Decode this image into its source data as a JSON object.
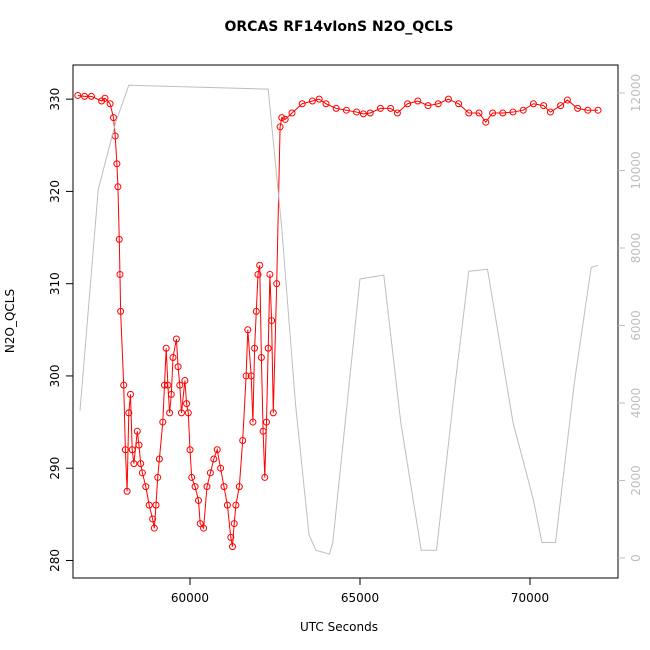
{
  "chart_data": {
    "type": "line",
    "title": "ORCAS RF14vIonS N2O_QCLS",
    "xlabel": "UTC Seconds",
    "ylabel": "N2O_QCLS",
    "xlim": [
      56559,
      72588
    ],
    "xticks": [
      60000,
      65000,
      70000
    ],
    "ylim": [
      278.1,
      333.7
    ],
    "yticks": [
      280,
      290,
      300,
      310,
      320,
      330
    ],
    "y2lim": [
      -516,
      12722
    ],
    "y2ticks": [
      0,
      2000,
      4000,
      6000,
      8000,
      10000,
      12000
    ],
    "series": [
      {
        "color": "#ff0000",
        "marker": "circle",
        "axis": "y",
        "x": [
          56700,
          56900,
          57100,
          57400,
          57500,
          57650,
          57750,
          57800,
          57850,
          57880,
          57920,
          57940,
          57960,
          58050,
          58100,
          58150,
          58200,
          58250,
          58300,
          58350,
          58450,
          58500,
          58550,
          58600,
          58700,
          58800,
          58900,
          58950,
          59000,
          59050,
          59100,
          59200,
          59250,
          59300,
          59350,
          59400,
          59450,
          59500,
          59600,
          59650,
          59700,
          59750,
          59850,
          59900,
          59950,
          60000,
          60050,
          60150,
          60250,
          60300,
          60400,
          60500,
          60600,
          60700,
          60800,
          60900,
          61000,
          61100,
          61200,
          61250,
          61300,
          61350,
          61450,
          61550,
          61650,
          61700,
          61800,
          61850,
          61900,
          61950,
          62000,
          62050,
          62100,
          62150,
          62200,
          62250,
          62300,
          62350,
          62400,
          62450,
          62550,
          62650,
          62700,
          62800,
          63000,
          63300,
          63600,
          63800,
          64000,
          64300,
          64600,
          64900,
          65100,
          65300,
          65600,
          65900,
          66100,
          66400,
          66700,
          67000,
          67300,
          67600,
          67900,
          68200,
          68500,
          68700,
          68900,
          69200,
          69500,
          69800,
          70100,
          70400,
          70600,
          70900,
          71100,
          71400,
          71700,
          72000
        ],
        "values": [
          330.4,
          330.3,
          330.3,
          329.8,
          330.1,
          329.5,
          328,
          326,
          323,
          320.5,
          314.8,
          311,
          307,
          299,
          292,
          287.5,
          296,
          298,
          292,
          290.5,
          294,
          292.5,
          290.5,
          289.5,
          288,
          286,
          284.5,
          283.5,
          286,
          289,
          291,
          295,
          299,
          303,
          299,
          296,
          298,
          302,
          304,
          301,
          299,
          296,
          299.5,
          297,
          296,
          292,
          289,
          288,
          286.5,
          284,
          283.5,
          288,
          289.5,
          291,
          292,
          290,
          288,
          286,
          282.5,
          281.5,
          284,
          286,
          288,
          293,
          300,
          305,
          300,
          295,
          303,
          307,
          311,
          312,
          302,
          294,
          289,
          295,
          303,
          311,
          306,
          296,
          310,
          327,
          328,
          327.8,
          328.5,
          329.5,
          329.8,
          330,
          329.5,
          329,
          328.8,
          328.6,
          328.4,
          328.5,
          329,
          329,
          328.5,
          329.5,
          329.8,
          329.3,
          329.5,
          330,
          329.5,
          328.5,
          328.5,
          327.5,
          328.5,
          328.5,
          328.6,
          328.8,
          329.5,
          329.3,
          328.6,
          329.3,
          329.9,
          329,
          328.8,
          328.8
        ]
      },
      {
        "color": "#bebebe",
        "axis": "y2",
        "x": [
          56765,
          57300,
          57800,
          58200,
          62300,
          62700,
          63100,
          63500,
          63700,
          64100,
          64200,
          65000,
          65700,
          66200,
          66800,
          67250,
          67800,
          68200,
          68750,
          69500,
          70100,
          70350,
          70750,
          71300,
          71800,
          72000
        ],
        "values": [
          3800,
          9500,
          11200,
          12200,
          12100,
          8500,
          4000,
          600,
          200,
          100,
          400,
          7200,
          7300,
          3500,
          200,
          200,
          4500,
          7400,
          7450,
          3500,
          1500,
          400,
          400,
          4500,
          7500,
          7550
        ]
      }
    ]
  }
}
